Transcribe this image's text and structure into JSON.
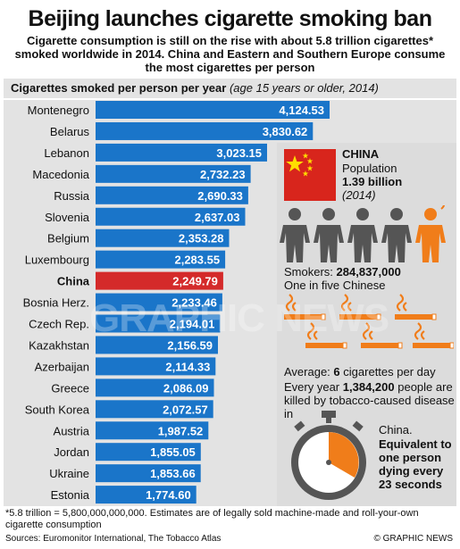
{
  "header": {
    "title": "Beijing launches cigarette smoking ban",
    "subtitle": "Cigarette consumption is still on the rise with about 5.8 trillion cigarettes* smoked worldwide in 2014. China and Eastern and Southern Europe consume the most cigarettes per person"
  },
  "chart_header": {
    "main": "Cigarettes smoked per person per year",
    "sub": "(age 15 years or older, 2014)"
  },
  "chart_data": {
    "type": "bar",
    "orientation": "horizontal",
    "categories": [
      "Montenegro",
      "Belarus",
      "Lebanon",
      "Macedonia",
      "Russia",
      "Slovenia",
      "Belgium",
      "Luxembourg",
      "China",
      "Bosnia Herz.",
      "Czech Rep.",
      "Kazakhstan",
      "Azerbaijan",
      "Greece",
      "South Korea",
      "Austria",
      "Jordan",
      "Ukraine",
      "Estonia"
    ],
    "values": [
      4124.53,
      3830.62,
      3023.15,
      2732.23,
      2690.33,
      2637.03,
      2353.28,
      2283.55,
      2249.79,
      2233.46,
      2194.01,
      2156.59,
      2114.33,
      2086.09,
      2072.57,
      1987.52,
      1855.05,
      1853.66,
      1774.6
    ],
    "labels": [
      "4,124.53",
      "3,830.62",
      "3,023.15",
      "2,732.23",
      "2,690.33",
      "2,637.03",
      "2,353.28",
      "2,283.55",
      "2,249.79",
      "2,233.46",
      "2,194.01",
      "2,156.59",
      "2,114.33",
      "2,086.09",
      "2,072.57",
      "1,987.52",
      "1,855.05",
      "1,853.66",
      "1,774.60"
    ],
    "highlight": "China",
    "xlim": [
      0,
      4124.53
    ],
    "bar_color": "#1a75c9",
    "highlight_color": "#d42a2a"
  },
  "china": {
    "name": "CHINA",
    "population_label": "Population",
    "population_value": "1.39 billion",
    "year": "(2014)",
    "smokers_label": "Smokers:",
    "smokers_value": "284,837,000",
    "one_in_five": "One in five Chinese",
    "average_label": "Average:",
    "average_value": "6",
    "average_unit": "cigarettes per day",
    "killed_prefix": "Every year",
    "killed_value": "1,384,200",
    "killed_suffix": "people are killed by tobacco-caused disease in",
    "country_word": "China.",
    "equivalent": "Equivalent to one person dying every 23 seconds",
    "icon_orange": "#f07d1a",
    "icon_grey": "#555555"
  },
  "watermark": "GRAPHIC NEWS",
  "footnote": "*5.8 trillion = 5,800,000,000,000. Estimates are of legally sold machine-made and roll-your-own cigarette consumption",
  "sources": "Sources: Euromonitor International, The Tobacco Atlas",
  "credit": "© GRAPHIC NEWS"
}
